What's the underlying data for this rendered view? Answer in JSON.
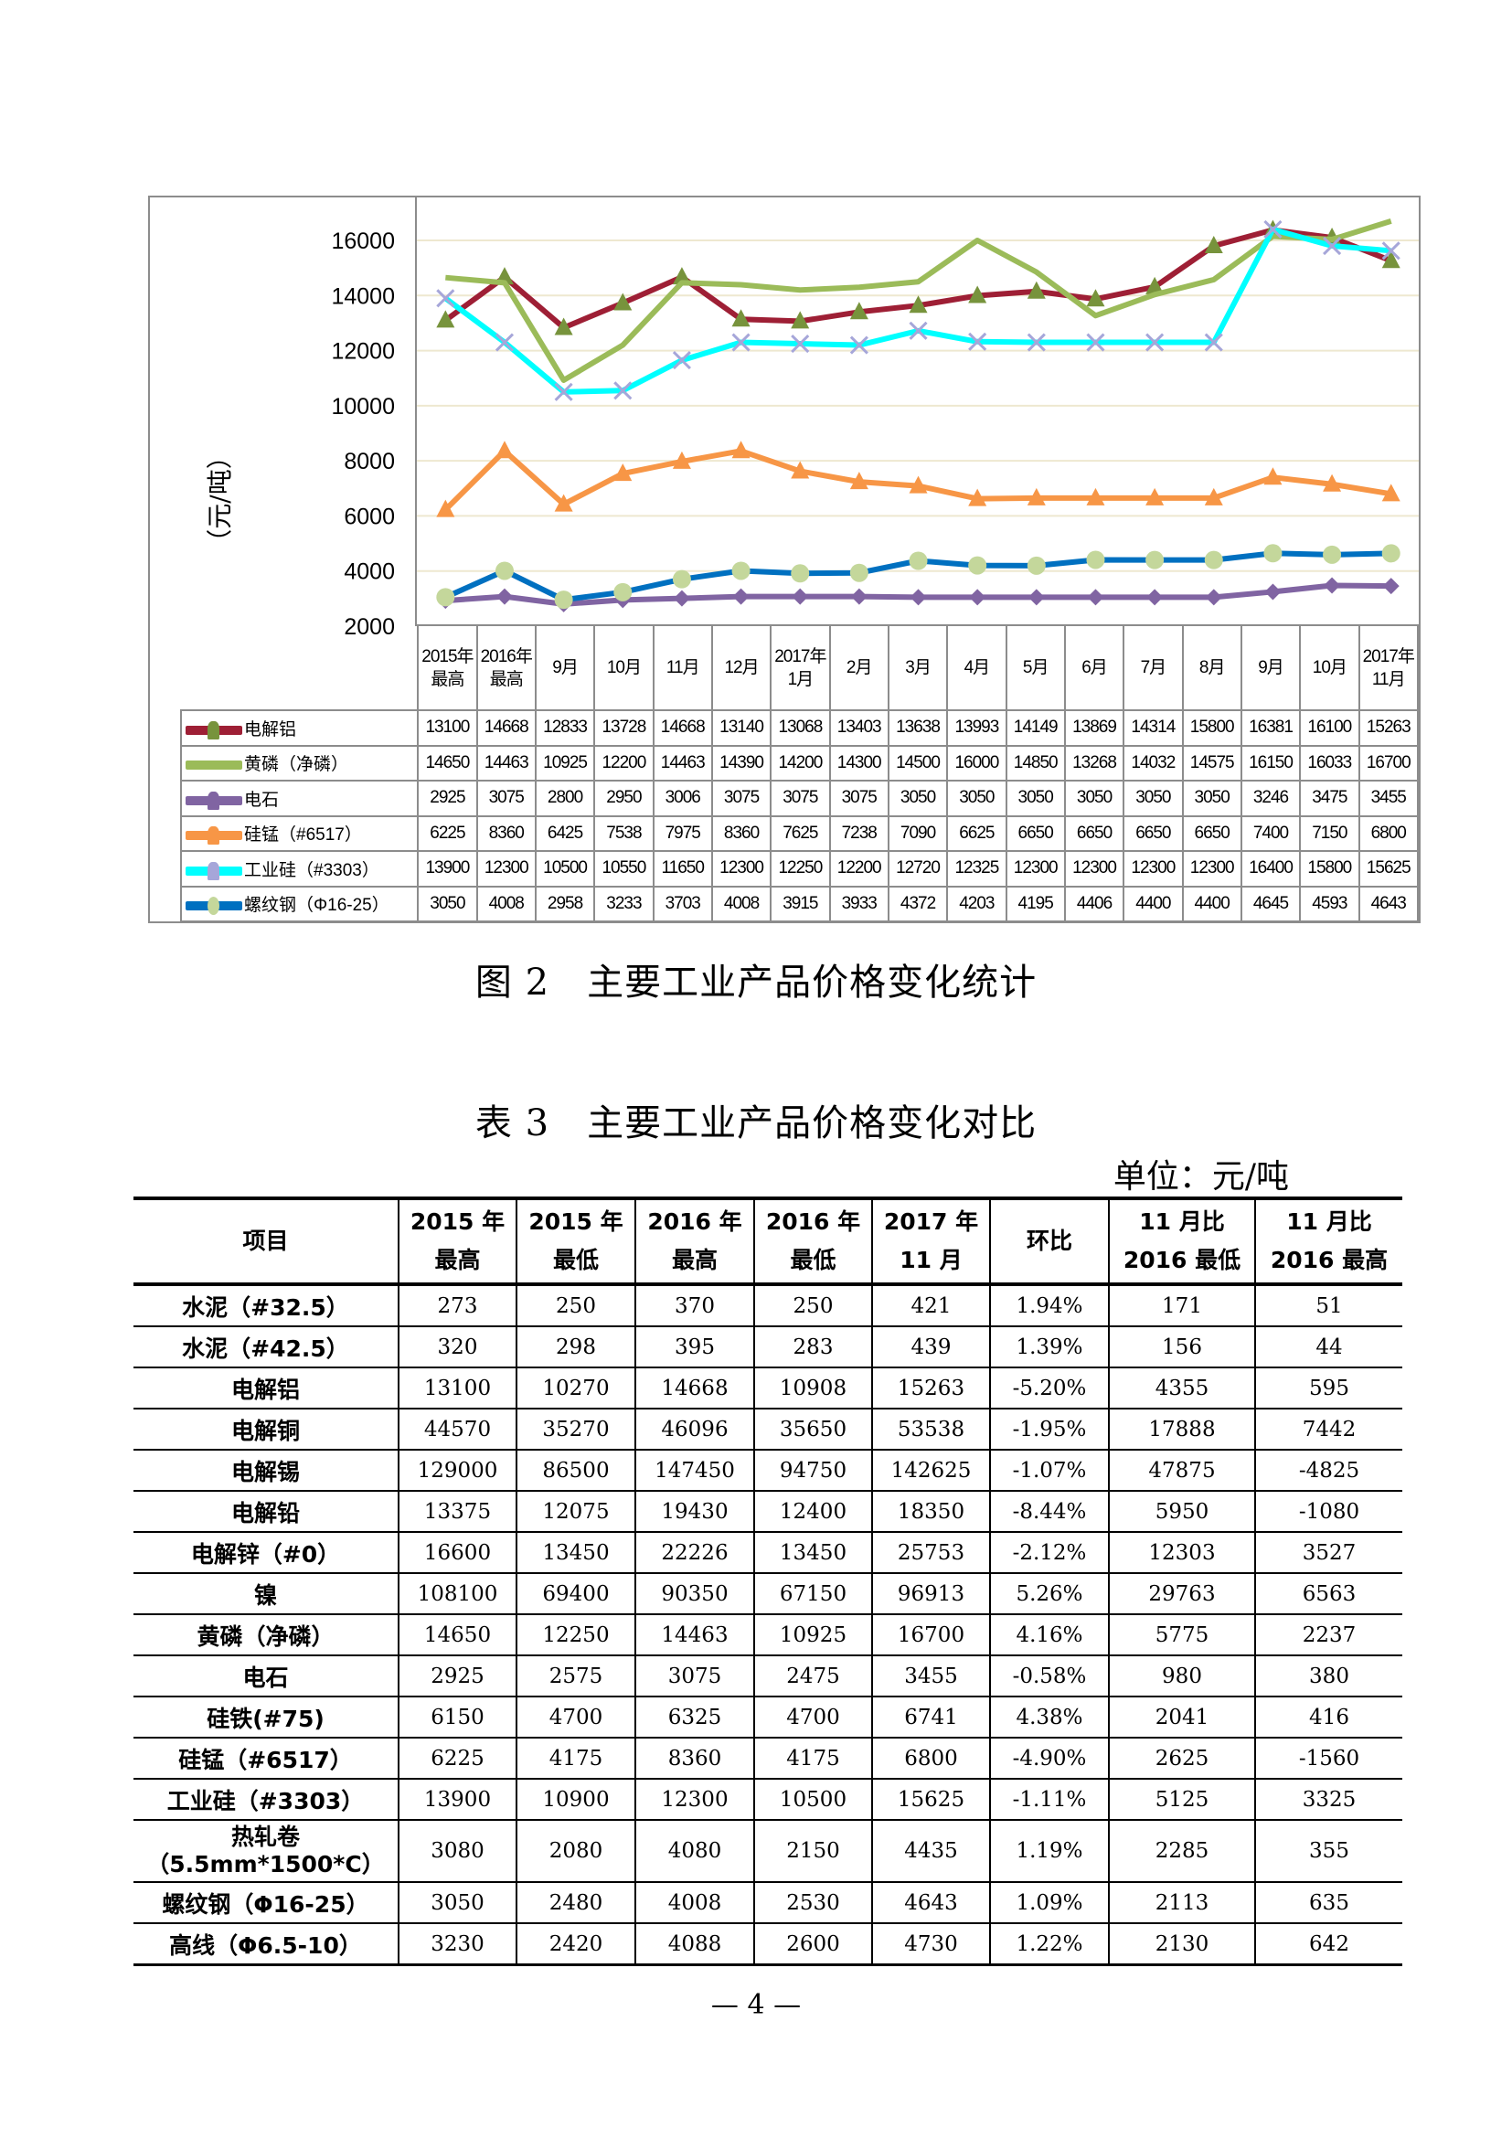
{
  "chart_data": {
    "type": "line",
    "ylabel": "（元/吨）",
    "ylim": [
      2000,
      16000
    ],
    "yticks": [
      2000,
      4000,
      6000,
      8000,
      10000,
      12000,
      14000,
      16000
    ],
    "grid": true,
    "categories": [
      "2015年最高",
      "2016年最高",
      "9月",
      "10月",
      "11月",
      "12月",
      "2017年1月",
      "2月",
      "3月",
      "4月",
      "5月",
      "6月",
      "7月",
      "8月",
      "9月",
      "10月",
      "2017年11月"
    ],
    "series": [
      {
        "name": "电解铝",
        "color": "#9e1f35",
        "marker": "triangle",
        "marker_color": "#77933c",
        "values": [
          13100,
          14668,
          12833,
          13728,
          14668,
          13140,
          13068,
          13403,
          13638,
          13993,
          14149,
          13869,
          14314,
          15800,
          16381,
          16100,
          15263
        ]
      },
      {
        "name": "黄磷（净磷）",
        "color": "#9bbb59",
        "marker": "none",
        "marker_color": "#9bbb59",
        "values": [
          14650,
          14463,
          10925,
          12200,
          14463,
          14390,
          14200,
          14300,
          14500,
          16000,
          14850,
          13268,
          14032,
          14575,
          16150,
          16033,
          16700
        ]
      },
      {
        "name": "电石",
        "color": "#8064a2",
        "marker": "diamond",
        "marker_color": "#8064a2",
        "values": [
          2925,
          3075,
          2800,
          2950,
          3006,
          3075,
          3075,
          3075,
          3050,
          3050,
          3050,
          3050,
          3050,
          3050,
          3246,
          3475,
          3455
        ]
      },
      {
        "name": "硅锰（#6517）",
        "color": "#f79646",
        "marker": "triangle",
        "marker_color": "#f79646",
        "values": [
          6225,
          8360,
          6425,
          7538,
          7975,
          8360,
          7625,
          7238,
          7090,
          6625,
          6650,
          6650,
          6650,
          6650,
          7400,
          7150,
          6800
        ]
      },
      {
        "name": "工业硅（#3303）",
        "color": "#00ffff",
        "marker": "x",
        "marker_color": "#a6a6d9",
        "values": [
          13900,
          12300,
          10500,
          10550,
          11650,
          12300,
          12250,
          12200,
          12720,
          12325,
          12300,
          12300,
          12300,
          12300,
          16400,
          15800,
          15625
        ]
      },
      {
        "name": "螺纹钢（Φ16-25）",
        "color": "#0070c0",
        "marker": "circle",
        "marker_color": "#c4d79b",
        "values": [
          3050,
          4008,
          2958,
          3233,
          3703,
          4008,
          3915,
          3933,
          4372,
          4203,
          4195,
          4406,
          4400,
          4400,
          4645,
          4593,
          4643
        ]
      }
    ]
  },
  "figure_caption": "图 2　主要工业产品价格变化统计",
  "table_title": "表 3　主要工业产品价格变化对比",
  "unit": "单位：元/吨",
  "table": {
    "headers": [
      "项目",
      "2015 年\n最高",
      "2015 年\n最低",
      "2016 年\n最高",
      "2016 年\n最低",
      "2017 年\n11 月",
      "环比",
      "11 月比\n2016 最低",
      "11 月比\n2016 最高"
    ],
    "rows": [
      [
        "水泥（#32.5）",
        "273",
        "250",
        "370",
        "250",
        "421",
        "1.94%",
        "171",
        "51"
      ],
      [
        "水泥（#42.5）",
        "320",
        "298",
        "395",
        "283",
        "439",
        "1.39%",
        "156",
        "44"
      ],
      [
        "电解铝",
        "13100",
        "10270",
        "14668",
        "10908",
        "15263",
        "-5.20%",
        "4355",
        "595"
      ],
      [
        "电解铜",
        "44570",
        "35270",
        "46096",
        "35650",
        "53538",
        "-1.95%",
        "17888",
        "7442"
      ],
      [
        "电解锡",
        "129000",
        "86500",
        "147450",
        "94750",
        "142625",
        "-1.07%",
        "47875",
        "-4825"
      ],
      [
        "电解铅",
        "13375",
        "12075",
        "19430",
        "12400",
        "18350",
        "-8.44%",
        "5950",
        "-1080"
      ],
      [
        "电解锌（#0）",
        "16600",
        "13450",
        "22226",
        "13450",
        "25753",
        "-2.12%",
        "12303",
        "3527"
      ],
      [
        "镍",
        "108100",
        "69400",
        "90350",
        "67150",
        "96913",
        "5.26%",
        "29763",
        "6563"
      ],
      [
        "黄磷（净磷）",
        "14650",
        "12250",
        "14463",
        "10925",
        "16700",
        "4.16%",
        "5775",
        "2237"
      ],
      [
        "电石",
        "2925",
        "2575",
        "3075",
        "2475",
        "3455",
        "-0.58%",
        "980",
        "380"
      ],
      [
        "硅铁(#75)",
        "6150",
        "4700",
        "6325",
        "4700",
        "6741",
        "4.38%",
        "2041",
        "416"
      ],
      [
        "硅锰（#6517）",
        "6225",
        "4175",
        "8360",
        "4175",
        "6800",
        "-4.90%",
        "2625",
        "-1560"
      ],
      [
        "工业硅（#3303）",
        "13900",
        "10900",
        "12300",
        "10500",
        "15625",
        "-1.11%",
        "5125",
        "3325"
      ],
      [
        "热轧卷\n（5.5mm*1500*C）",
        "3080",
        "2080",
        "4080",
        "2150",
        "4435",
        "1.19%",
        "2285",
        "355"
      ],
      [
        "螺纹钢（Φ16-25）",
        "3050",
        "2480",
        "4008",
        "2530",
        "4643",
        "1.09%",
        "2113",
        "635"
      ],
      [
        "高线（Φ6.5-10）",
        "3230",
        "2420",
        "4088",
        "2600",
        "4730",
        "1.22%",
        "2130",
        "642"
      ]
    ]
  },
  "page_number": "— 4 —"
}
